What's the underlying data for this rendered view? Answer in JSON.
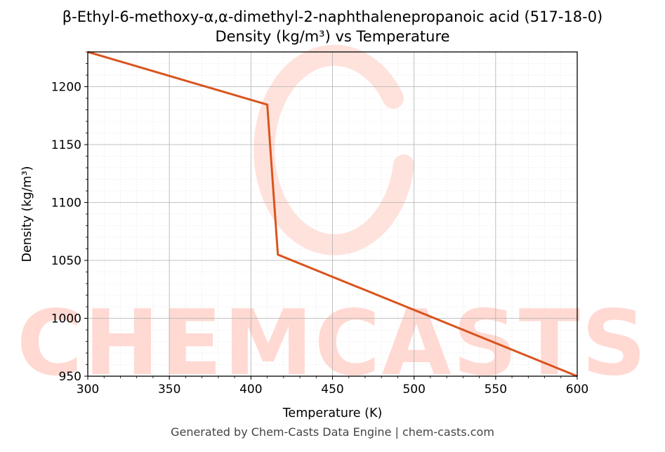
{
  "chart_data": {
    "type": "line",
    "title": "β-Ethyl-6-methoxy-α,α-dimethyl-2-naphthalenepropanoic acid (517-18-0)",
    "subtitle": "Density (kg/m³) vs Temperature",
    "xlabel": "Temperature (K)",
    "ylabel": "Density (kg/m³)",
    "xlim": [
      300,
      600
    ],
    "ylim": [
      950,
      1230
    ],
    "xticks": [
      300,
      350,
      400,
      450,
      500,
      550,
      600
    ],
    "yticks": [
      950,
      1000,
      1050,
      1100,
      1150,
      1200
    ],
    "grid": true,
    "line_color": "#d9541e",
    "series": [
      {
        "x": [
          300,
          410,
          416.5,
          600
        ],
        "y": [
          1230,
          1184.5,
          1055,
          950
        ]
      }
    ],
    "watermark": "CHEMCASTS"
  },
  "footer": "Generated by Chem-Casts Data Engine | chem-casts.com"
}
